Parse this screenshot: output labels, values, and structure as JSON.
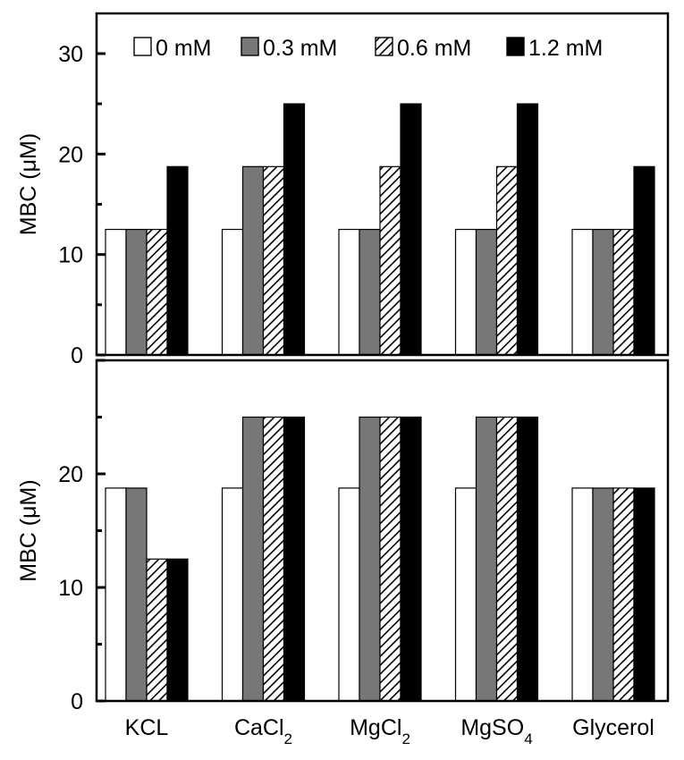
{
  "chart_data": [
    {
      "type": "bar",
      "panel": "top",
      "categories": [
        "KCL",
        "CaCl2",
        "MgCl2",
        "MgSO4",
        "Glycerol"
      ],
      "ylabel": "MBC (μM)",
      "ylim": [
        0,
        34
      ],
      "yticks": [
        0,
        10,
        20,
        30
      ],
      "legend": {
        "position": "top"
      },
      "series": [
        {
          "name": "0 mM",
          "pattern": "white",
          "values": [
            12.5,
            12.5,
            12.5,
            12.5,
            12.5
          ]
        },
        {
          "name": "0.3 mM",
          "pattern": "gray",
          "values": [
            12.5,
            18.75,
            12.5,
            12.5,
            12.5
          ]
        },
        {
          "name": "0.6 mM",
          "pattern": "hatch",
          "values": [
            12.5,
            18.75,
            18.75,
            18.75,
            12.5
          ]
        },
        {
          "name": "1.2 mM",
          "pattern": "black",
          "values": [
            18.75,
            25,
            25,
            25,
            18.75
          ]
        }
      ]
    },
    {
      "type": "bar",
      "panel": "bottom",
      "categories": [
        "KCL",
        "CaCl2",
        "MgCl2",
        "MgSO4",
        "Glycerol"
      ],
      "ylabel": "MBC (μM)",
      "ylim": [
        0,
        30
      ],
      "yticks": [
        0,
        10,
        20
      ],
      "series": [
        {
          "name": "0 mM",
          "pattern": "white",
          "values": [
            18.75,
            18.75,
            18.75,
            18.75,
            18.75
          ]
        },
        {
          "name": "0.3 mM",
          "pattern": "gray",
          "values": [
            18.75,
            25,
            25,
            25,
            18.75
          ]
        },
        {
          "name": "0.6 mM",
          "pattern": "hatch",
          "values": [
            12.5,
            25,
            25,
            25,
            18.75
          ]
        },
        {
          "name": "1.2 mM",
          "pattern": "black",
          "values": [
            12.5,
            25,
            25,
            25,
            18.75
          ]
        }
      ]
    }
  ],
  "x_labels": [
    {
      "base": "KCL",
      "sub": ""
    },
    {
      "base": "CaCl",
      "sub": "2"
    },
    {
      "base": "MgCl",
      "sub": "2"
    },
    {
      "base": "MgSO",
      "sub": "4"
    },
    {
      "base": "Glycerol",
      "sub": ""
    }
  ],
  "colors": {
    "white": "#ffffff",
    "gray": "#777777",
    "black": "#000000",
    "stroke": "#000000"
  }
}
